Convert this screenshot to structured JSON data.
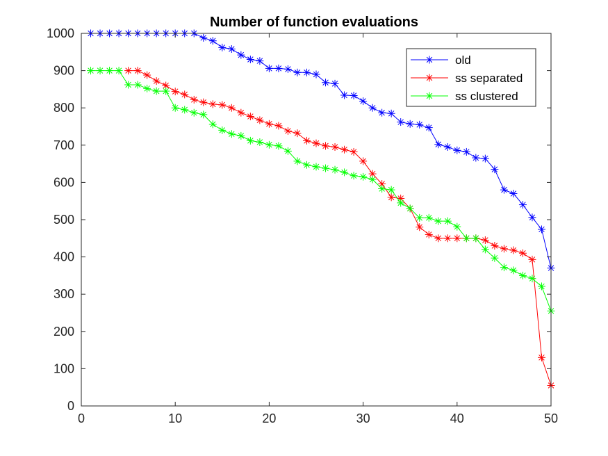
{
  "chart_data": {
    "type": "line",
    "title": "Number of function evaluations",
    "xlabel": "",
    "ylabel": "",
    "xlim": [
      0,
      50
    ],
    "ylim": [
      0,
      1000
    ],
    "xticks": [
      0,
      10,
      20,
      30,
      40,
      50
    ],
    "yticks": [
      0,
      100,
      200,
      300,
      400,
      500,
      600,
      700,
      800,
      900,
      1000
    ],
    "grid": false,
    "legend_position": "top-right",
    "marker": "asterisk",
    "series": [
      {
        "name": "old",
        "color": "#0000ff",
        "x": [
          1,
          2,
          3,
          4,
          5,
          6,
          7,
          8,
          9,
          10,
          11,
          12,
          13,
          14,
          15,
          16,
          17,
          18,
          19,
          20,
          21,
          22,
          23,
          24,
          25,
          26,
          27,
          28,
          29,
          30,
          31,
          32,
          33,
          34,
          35,
          36,
          37,
          38,
          39,
          40,
          41,
          42,
          43,
          44,
          45,
          46,
          47,
          48,
          49,
          50
        ],
        "values": [
          1000,
          1000,
          1000,
          1000,
          1000,
          1000,
          1000,
          1000,
          1000,
          1000,
          1000,
          1000,
          988,
          980,
          962,
          958,
          942,
          930,
          926,
          906,
          906,
          904,
          895,
          895,
          890,
          868,
          865,
          834,
          833,
          818,
          800,
          787,
          785,
          762,
          757,
          755,
          747,
          702,
          695,
          686,
          682,
          666,
          664,
          635,
          580,
          570,
          540,
          506,
          474,
          370
        ]
      },
      {
        "name": "ss separated",
        "color": "#ff0000",
        "x": [
          5,
          6,
          7,
          8,
          9,
          10,
          11,
          12,
          13,
          14,
          15,
          16,
          17,
          18,
          19,
          20,
          21,
          22,
          23,
          24,
          25,
          26,
          27,
          28,
          29,
          30,
          31,
          32,
          33,
          34,
          35,
          36,
          37,
          38,
          39,
          40,
          41,
          42,
          43,
          44,
          45,
          46,
          47,
          48,
          49,
          50
        ],
        "values": [
          900,
          900,
          888,
          872,
          860,
          844,
          836,
          822,
          815,
          810,
          808,
          800,
          787,
          777,
          767,
          757,
          752,
          738,
          732,
          712,
          705,
          698,
          695,
          688,
          682,
          657,
          623,
          596,
          560,
          557,
          530,
          480,
          460,
          450,
          450,
          450,
          450,
          450,
          445,
          430,
          422,
          418,
          410,
          393,
          130,
          55
        ]
      },
      {
        "name": "ss clustered",
        "color": "#00ff00",
        "x": [
          1,
          2,
          3,
          4,
          5,
          6,
          7,
          8,
          9,
          10,
          11,
          12,
          13,
          14,
          15,
          16,
          17,
          18,
          19,
          20,
          21,
          22,
          23,
          24,
          25,
          26,
          27,
          28,
          29,
          30,
          31,
          32,
          33,
          34,
          35,
          36,
          37,
          38,
          39,
          40,
          41,
          42,
          43,
          44,
          45,
          46,
          47,
          48,
          49,
          50
        ],
        "values": [
          900,
          900,
          900,
          900,
          862,
          862,
          852,
          845,
          845,
          800,
          795,
          787,
          782,
          756,
          740,
          730,
          725,
          712,
          708,
          701,
          698,
          684,
          657,
          647,
          642,
          638,
          634,
          627,
          618,
          615,
          608,
          583,
          580,
          545,
          530,
          505,
          505,
          496,
          496,
          481,
          450,
          450,
          420,
          397,
          372,
          364,
          350,
          342,
          321,
          255
        ]
      }
    ]
  }
}
